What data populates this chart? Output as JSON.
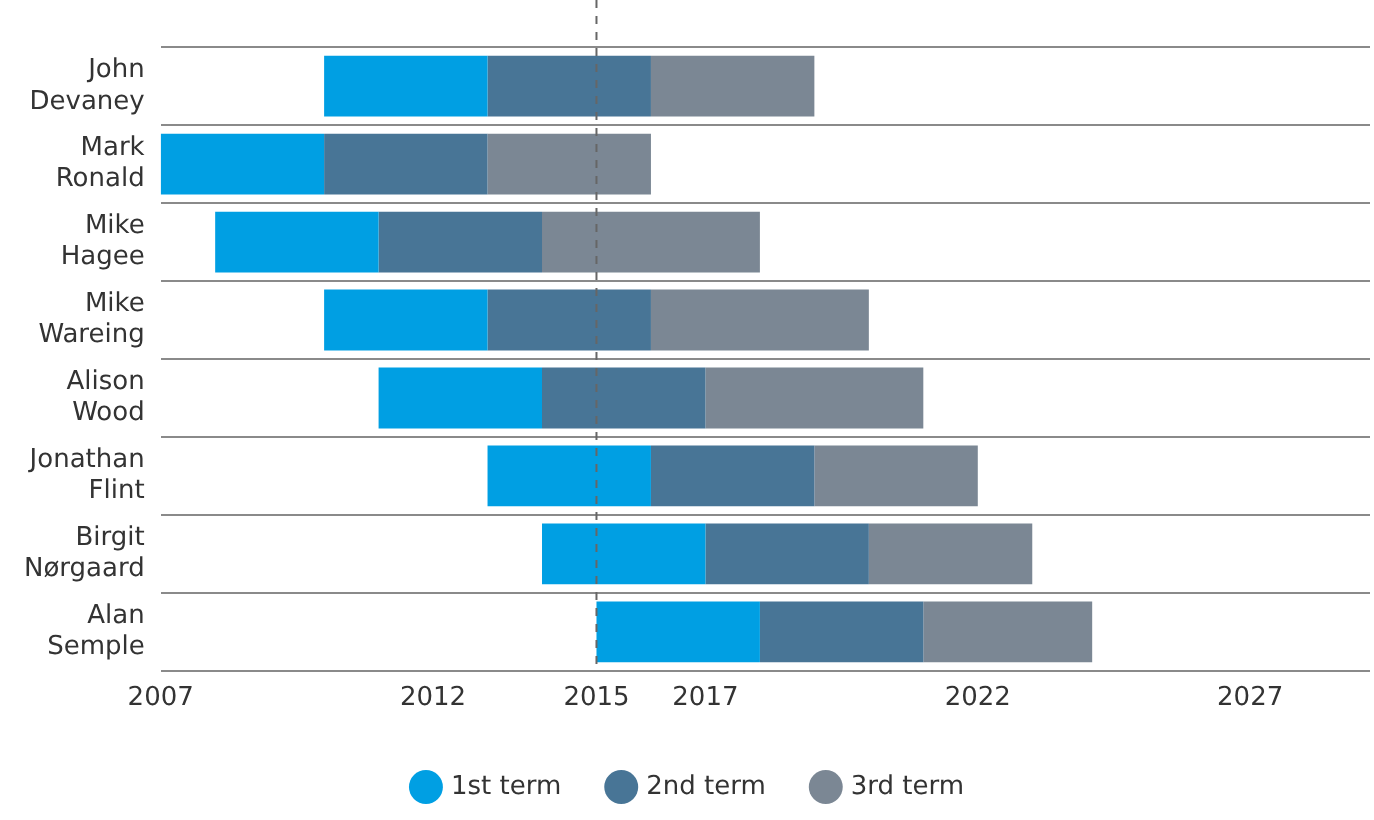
{
  "chart_data": {
    "type": "bar",
    "orientation": "horizontal",
    "categories": [
      "John Devaney",
      "Mark Ronald",
      "Mike Hagee",
      "Mike Wareing",
      "Alison Wood",
      "Jonathan Flint",
      "Birgit Nørgaard",
      "Alan Semple"
    ],
    "series": [
      {
        "name": "1st term",
        "color": "#009fe3",
        "base": [
          2010,
          2007,
          2008,
          2010,
          2011,
          2013,
          2014,
          2015
        ],
        "values": [
          3,
          3,
          3,
          3,
          3,
          3,
          3,
          3
        ]
      },
      {
        "name": "2nd term",
        "color": "#487596",
        "base": [
          2013,
          2010,
          2011,
          2013,
          2014,
          2016,
          2017,
          2018
        ],
        "values": [
          3,
          3,
          3,
          3,
          3,
          3,
          3,
          3
        ]
      },
      {
        "name": "3rd term",
        "color": "#7b8794",
        "base": [
          2016,
          2013,
          2014,
          2016,
          2017,
          2019,
          2020,
          2021
        ],
        "values": [
          3,
          3,
          4,
          4,
          4,
          3,
          3,
          3.1
        ]
      }
    ],
    "xlim": [
      2007,
      2029.2
    ],
    "xticks": [
      2007,
      2012,
      2015,
      2017,
      2022,
      2027
    ],
    "ref_lines": [
      {
        "axis": "x",
        "value": 2015,
        "color": "#666666",
        "line_style": "dashed"
      }
    ],
    "grid": "y",
    "legend": "bottom",
    "marker": "circle"
  }
}
